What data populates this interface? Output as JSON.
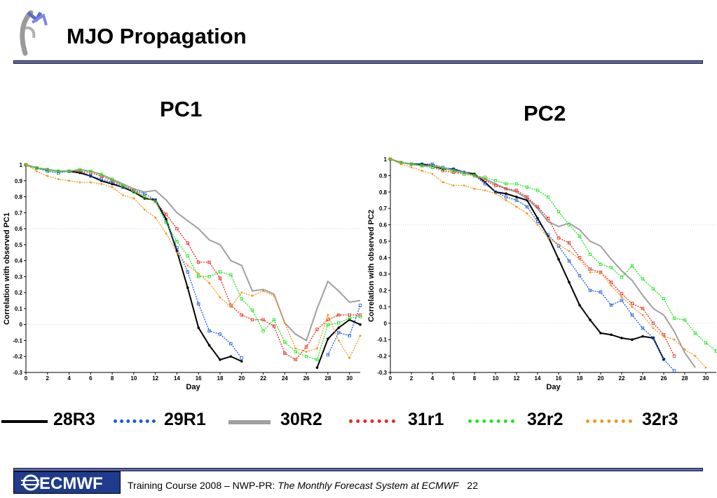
{
  "slide": {
    "title": "MJO Propagation",
    "footer": {
      "logo_text": "ECMWF",
      "course": "Training Course 2008 – NWP-PR:",
      "subtitle": "The Monthly Forecast System at ECMWF",
      "page_number": "22"
    },
    "legend": [
      {
        "label": "28R3",
        "color": "#000000",
        "style": "solid"
      },
      {
        "label": "29R1",
        "color": "#1a5adc",
        "style": "dotted"
      },
      {
        "label": "30R2",
        "color": "#a0a0a0",
        "style": "solid"
      },
      {
        "label": "31r1",
        "color": "#e8281e",
        "style": "dotted"
      },
      {
        "label": "32r2",
        "color": "#1ee61e",
        "style": "dotted"
      },
      {
        "label": "32r3",
        "color": "#f0961e",
        "style": "dotted"
      }
    ]
  },
  "chart_data": [
    {
      "type": "line",
      "title": "PC1",
      "xlabel": "Day",
      "ylabel": "Correlation with observed PC1",
      "xlim": [
        0,
        31
      ],
      "ylim": [
        -0.3,
        1
      ],
      "xticks": [
        0,
        2,
        4,
        6,
        8,
        10,
        12,
        14,
        16,
        18,
        20,
        22,
        24,
        26,
        28,
        30
      ],
      "yticks": [
        -0.3,
        -0.2,
        -0.1,
        0,
        0.1,
        0.2,
        0.3,
        0.4,
        0.5,
        0.6,
        0.7,
        0.8,
        0.9,
        1
      ],
      "reference_lines": [
        0,
        0.6
      ],
      "series": [
        {
          "name": "28R3",
          "x": [
            0,
            1,
            2,
            3,
            4,
            5,
            6,
            7,
            8,
            9,
            10,
            11,
            12,
            13,
            14,
            15,
            16,
            17,
            18,
            19,
            20
          ],
          "values": [
            1.0,
            0.98,
            0.97,
            0.96,
            0.96,
            0.95,
            0.93,
            0.9,
            0.88,
            0.86,
            0.83,
            0.79,
            0.78,
            0.66,
            0.46,
            0.23,
            -0.02,
            -0.13,
            -0.22,
            -0.2,
            -0.23
          ]
        },
        {
          "name": "28R3",
          "x": [
            27,
            28,
            29,
            30,
            31
          ],
          "values": [
            -0.27,
            -0.09,
            -0.02,
            0.03,
            0.0
          ]
        },
        {
          "name": "29R1",
          "x": [
            0,
            1,
            2,
            3,
            4,
            5,
            6,
            7,
            8,
            9,
            10,
            11,
            12,
            13,
            14,
            15,
            16,
            17,
            18,
            19,
            20
          ],
          "values": [
            1.0,
            0.98,
            0.96,
            0.95,
            0.96,
            0.96,
            0.93,
            0.91,
            0.89,
            0.86,
            0.84,
            0.82,
            0.78,
            0.64,
            0.48,
            0.33,
            0.13,
            -0.04,
            -0.06,
            -0.12,
            -0.21
          ]
        },
        {
          "name": "29R1",
          "x": [
            28,
            29,
            30,
            31
          ],
          "values": [
            -0.19,
            -0.05,
            -0.07,
            0.12
          ]
        },
        {
          "name": "30R2",
          "x": [
            0,
            1,
            2,
            3,
            4,
            5,
            6,
            7,
            8,
            9,
            10,
            11,
            12,
            13,
            14,
            15,
            16,
            17,
            18,
            19,
            20,
            21,
            22,
            23,
            24,
            25,
            26,
            27,
            28,
            29,
            30,
            31
          ],
          "values": [
            1.0,
            0.98,
            0.97,
            0.96,
            0.96,
            0.97,
            0.96,
            0.94,
            0.91,
            0.88,
            0.85,
            0.83,
            0.84,
            0.78,
            0.7,
            0.65,
            0.6,
            0.53,
            0.5,
            0.4,
            0.37,
            0.21,
            0.22,
            0.19,
            0.01,
            -0.06,
            -0.1,
            0.1,
            0.27,
            0.21,
            0.14,
            0.15
          ]
        },
        {
          "name": "31r1",
          "x": [
            0,
            1,
            2,
            3,
            4,
            5,
            6,
            7,
            8,
            9,
            10,
            11,
            12,
            13,
            14,
            15,
            16,
            17,
            18,
            19,
            20,
            21,
            22,
            23,
            24,
            25,
            26,
            27,
            28,
            29,
            30,
            31
          ],
          "values": [
            1.0,
            0.98,
            0.97,
            0.96,
            0.96,
            0.96,
            0.95,
            0.93,
            0.9,
            0.87,
            0.84,
            0.8,
            0.77,
            0.69,
            0.6,
            0.51,
            0.39,
            0.39,
            0.29,
            0.12,
            0.06,
            0.03,
            0.03,
            -0.01,
            -0.18,
            -0.22,
            -0.14,
            -0.03,
            0.03,
            0.06,
            0.06,
            0.06
          ]
        },
        {
          "name": "32r2",
          "x": [
            0,
            1,
            2,
            3,
            4,
            5,
            6,
            7,
            8,
            9,
            10,
            11,
            12,
            13,
            14,
            15,
            16,
            17,
            18,
            19,
            20,
            21,
            22,
            23,
            24,
            25,
            26,
            27,
            28,
            29,
            30,
            31
          ],
          "values": [
            1.0,
            0.98,
            0.97,
            0.96,
            0.96,
            0.97,
            0.96,
            0.94,
            0.91,
            0.87,
            0.83,
            0.8,
            0.77,
            0.64,
            0.52,
            0.43,
            0.3,
            0.3,
            0.33,
            0.31,
            0.16,
            0.09,
            -0.04,
            0.03,
            -0.11,
            -0.17,
            -0.2,
            -0.22,
            0.0,
            0.01,
            0.04,
            0.05
          ]
        },
        {
          "name": "32r3",
          "x": [
            0,
            1,
            2,
            3,
            4,
            5,
            6,
            7,
            8,
            9,
            10,
            11,
            12,
            13,
            14,
            15,
            16,
            17,
            18,
            19,
            20,
            21,
            22,
            23,
            24,
            25,
            26,
            27,
            28,
            29,
            30,
            31
          ],
          "values": [
            1.0,
            0.96,
            0.93,
            0.91,
            0.9,
            0.89,
            0.89,
            0.88,
            0.86,
            0.81,
            0.79,
            0.72,
            0.67,
            0.57,
            0.45,
            0.37,
            0.32,
            0.26,
            0.17,
            0.11,
            0.2,
            0.18,
            0.21,
            0.18,
            0.01,
            -0.15,
            -0.17,
            -0.15,
            0.06,
            -0.1,
            -0.21,
            -0.07
          ]
        }
      ]
    },
    {
      "type": "line",
      "title": "PC2",
      "xlabel": "Day",
      "ylabel": "Correlation with observed PC2",
      "xlim": [
        0,
        31
      ],
      "ylim": [
        -0.3,
        1
      ],
      "xticks": [
        0,
        2,
        4,
        6,
        8,
        10,
        12,
        14,
        16,
        18,
        20,
        22,
        24,
        26,
        28,
        30
      ],
      "yticks": [
        -0.3,
        -0.2,
        -0.1,
        0,
        0.1,
        0.2,
        0.3,
        0.4,
        0.5,
        0.6,
        0.7,
        0.8,
        0.9,
        1
      ],
      "reference_lines": [
        0,
        0.6
      ],
      "series": [
        {
          "name": "28R3",
          "x": [
            0,
            1,
            2,
            3,
            4,
            5,
            6,
            7,
            8,
            9,
            10,
            11,
            12,
            13,
            14,
            15,
            16,
            17,
            18,
            19,
            20,
            21,
            22,
            23,
            24,
            25,
            26
          ],
          "values": [
            1.0,
            0.98,
            0.97,
            0.97,
            0.96,
            0.94,
            0.94,
            0.92,
            0.91,
            0.86,
            0.8,
            0.79,
            0.77,
            0.75,
            0.64,
            0.53,
            0.39,
            0.25,
            0.11,
            0.02,
            -0.06,
            -0.07,
            -0.09,
            -0.1,
            -0.08,
            -0.09,
            -0.22
          ]
        },
        {
          "name": "29R1",
          "x": [
            0,
            1,
            2,
            3,
            4,
            5,
            6,
            7,
            8,
            9,
            10,
            11,
            12,
            13,
            14,
            15,
            16,
            17,
            18,
            19,
            20,
            21,
            22,
            23,
            24,
            25,
            26,
            27
          ],
          "values": [
            1.0,
            0.98,
            0.97,
            0.97,
            0.97,
            0.95,
            0.94,
            0.92,
            0.9,
            0.85,
            0.8,
            0.77,
            0.75,
            0.71,
            0.62,
            0.54,
            0.47,
            0.38,
            0.29,
            0.2,
            0.19,
            0.11,
            0.14,
            0.05,
            -0.03,
            -0.09,
            -0.22,
            -0.29
          ]
        },
        {
          "name": "30R2",
          "x": [
            0,
            1,
            2,
            3,
            4,
            5,
            6,
            7,
            8,
            9,
            10,
            11,
            12,
            13,
            14,
            15,
            16,
            17,
            18,
            19,
            20,
            21,
            22,
            23,
            24,
            25,
            26,
            27,
            28,
            29
          ],
          "values": [
            1.0,
            0.98,
            0.97,
            0.96,
            0.96,
            0.95,
            0.93,
            0.92,
            0.9,
            0.88,
            0.85,
            0.82,
            0.8,
            0.76,
            0.7,
            0.62,
            0.59,
            0.61,
            0.57,
            0.5,
            0.47,
            0.39,
            0.32,
            0.26,
            0.17,
            0.09,
            0.05,
            -0.05,
            -0.18,
            -0.27
          ]
        },
        {
          "name": "31r1",
          "x": [
            0,
            1,
            2,
            3,
            4,
            5,
            6,
            7,
            8,
            9,
            10,
            11,
            12,
            13,
            14,
            15,
            16,
            17,
            18,
            19,
            20,
            21,
            22,
            23,
            24,
            25,
            26,
            27
          ],
          "values": [
            1.0,
            0.98,
            0.97,
            0.96,
            0.95,
            0.93,
            0.92,
            0.91,
            0.9,
            0.87,
            0.84,
            0.82,
            0.81,
            0.77,
            0.71,
            0.64,
            0.52,
            0.49,
            0.4,
            0.33,
            0.31,
            0.25,
            0.18,
            0.12,
            0.09,
            0.0,
            -0.07,
            -0.2
          ]
        },
        {
          "name": "32r2",
          "x": [
            0,
            1,
            2,
            3,
            4,
            5,
            6,
            7,
            8,
            9,
            10,
            11,
            12,
            13,
            14,
            15,
            16,
            17,
            18,
            19,
            20,
            21,
            22,
            23,
            24,
            25,
            26,
            27,
            28,
            29,
            30,
            31
          ],
          "values": [
            1.0,
            0.98,
            0.97,
            0.96,
            0.95,
            0.94,
            0.93,
            0.91,
            0.9,
            0.89,
            0.87,
            0.85,
            0.85,
            0.83,
            0.81,
            0.77,
            0.68,
            0.6,
            0.53,
            0.42,
            0.36,
            0.34,
            0.28,
            0.35,
            0.27,
            0.21,
            0.15,
            0.03,
            0.02,
            -0.06,
            -0.12,
            -0.17
          ]
        },
        {
          "name": "32r3",
          "x": [
            0,
            1,
            2,
            3,
            4,
            5,
            6,
            7,
            8,
            9,
            10,
            11,
            12,
            13,
            14,
            15,
            16,
            17,
            18,
            19,
            20,
            21,
            22,
            23,
            24,
            25,
            26,
            27,
            28,
            29,
            30
          ],
          "values": [
            1.0,
            0.97,
            0.95,
            0.93,
            0.91,
            0.86,
            0.84,
            0.84,
            0.82,
            0.81,
            0.79,
            0.75,
            0.71,
            0.67,
            0.6,
            0.52,
            0.48,
            0.44,
            0.39,
            0.31,
            0.31,
            0.23,
            0.16,
            0.1,
            0.05,
            -0.03,
            -0.08,
            -0.1,
            -0.16,
            -0.2,
            -0.27
          ]
        }
      ]
    }
  ]
}
